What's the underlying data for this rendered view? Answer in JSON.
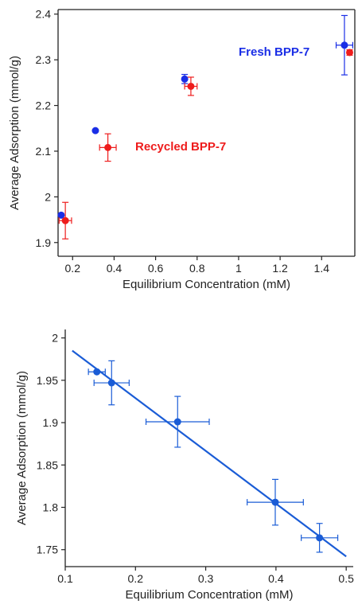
{
  "colors": {
    "blue": "#1a2ee6",
    "red": "#ee1c1c",
    "fit_line": "#1a5cd6",
    "axis": "#222222"
  },
  "chart_data": [
    {
      "type": "scatter",
      "title": "",
      "xlabel": "Equilibrium Concentration (mM)",
      "ylabel": "Average Adsorption (mmol/g)",
      "xlim": [
        0.13,
        1.56
      ],
      "ylim": [
        1.87,
        2.41
      ],
      "x_ticks": [
        0.2,
        0.4,
        0.6,
        0.8,
        1,
        1.2,
        1.4
      ],
      "x_tick_labels": [
        "0.2",
        "0.4",
        "0.6",
        "0.8",
        "1",
        "1.2",
        "1.4"
      ],
      "y_ticks": [
        1.9,
        2.0,
        2.1,
        2.2,
        2.3,
        2.4
      ],
      "y_tick_labels": [
        "1.9",
        "2",
        "2.1",
        "2.2",
        "2.3",
        "2.4"
      ],
      "grid": false,
      "legend": "inline labels near series",
      "series": [
        {
          "name": "Fresh BPP-7",
          "color": "#1a2ee6",
          "points": [
            {
              "x": 0.145,
              "y": 1.96
            },
            {
              "x": 0.31,
              "y": 2.145
            },
            {
              "x": 0.74,
              "y": 2.258,
              "yerr": 0.01
            },
            {
              "x": 1.51,
              "y": 2.332,
              "xerr": 0.04,
              "yerr": 0.065
            }
          ]
        },
        {
          "name": "Recycled BPP-7",
          "color": "#ee1c1c",
          "points": [
            {
              "x": 0.165,
              "y": 1.948,
              "xerr": 0.03,
              "yerr": 0.04
            },
            {
              "x": 0.37,
              "y": 2.108,
              "xerr": 0.04,
              "yerr": 0.03
            },
            {
              "x": 0.77,
              "y": 2.242,
              "xerr": 0.03,
              "yerr": 0.02
            },
            {
              "x": 1.535,
              "y": 2.316,
              "yerr": 0.006
            }
          ]
        }
      ]
    },
    {
      "type": "scatter",
      "title": "",
      "xlabel": "Equilibrium Concentration (mM)",
      "ylabel": "Average Adsorption (mmol/g)",
      "xlim": [
        0.1,
        0.51
      ],
      "ylim": [
        1.73,
        2.01
      ],
      "x_ticks": [
        0.1,
        0.2,
        0.3,
        0.4,
        0.5
      ],
      "x_tick_labels": [
        "0.1",
        "0.2",
        "0.3",
        "0.4",
        "0.5"
      ],
      "y_ticks": [
        1.75,
        1.8,
        1.85,
        1.9,
        1.95,
        2.0
      ],
      "y_tick_labels": [
        "1.75",
        "1.8",
        "1.85",
        "1.9",
        "1.95",
        "2"
      ],
      "grid": false,
      "fit_line": {
        "x": [
          0.11,
          0.5
        ],
        "y": [
          1.985,
          1.742
        ]
      },
      "series": [
        {
          "color": "#1a5cd6",
          "points": [
            {
              "x": 0.145,
              "y": 1.96,
              "xerr": 0.012
            },
            {
              "x": 0.166,
              "y": 1.947,
              "xerr": 0.025,
              "yerr": 0.026
            },
            {
              "x": 0.26,
              "y": 1.901,
              "xerr": 0.045,
              "yerr": 0.03
            },
            {
              "x": 0.399,
              "y": 1.806,
              "xerr": 0.04,
              "yerr": 0.027
            },
            {
              "x": 0.462,
              "y": 1.764,
              "xerr": 0.026,
              "yerr": 0.017
            }
          ]
        }
      ]
    }
  ]
}
